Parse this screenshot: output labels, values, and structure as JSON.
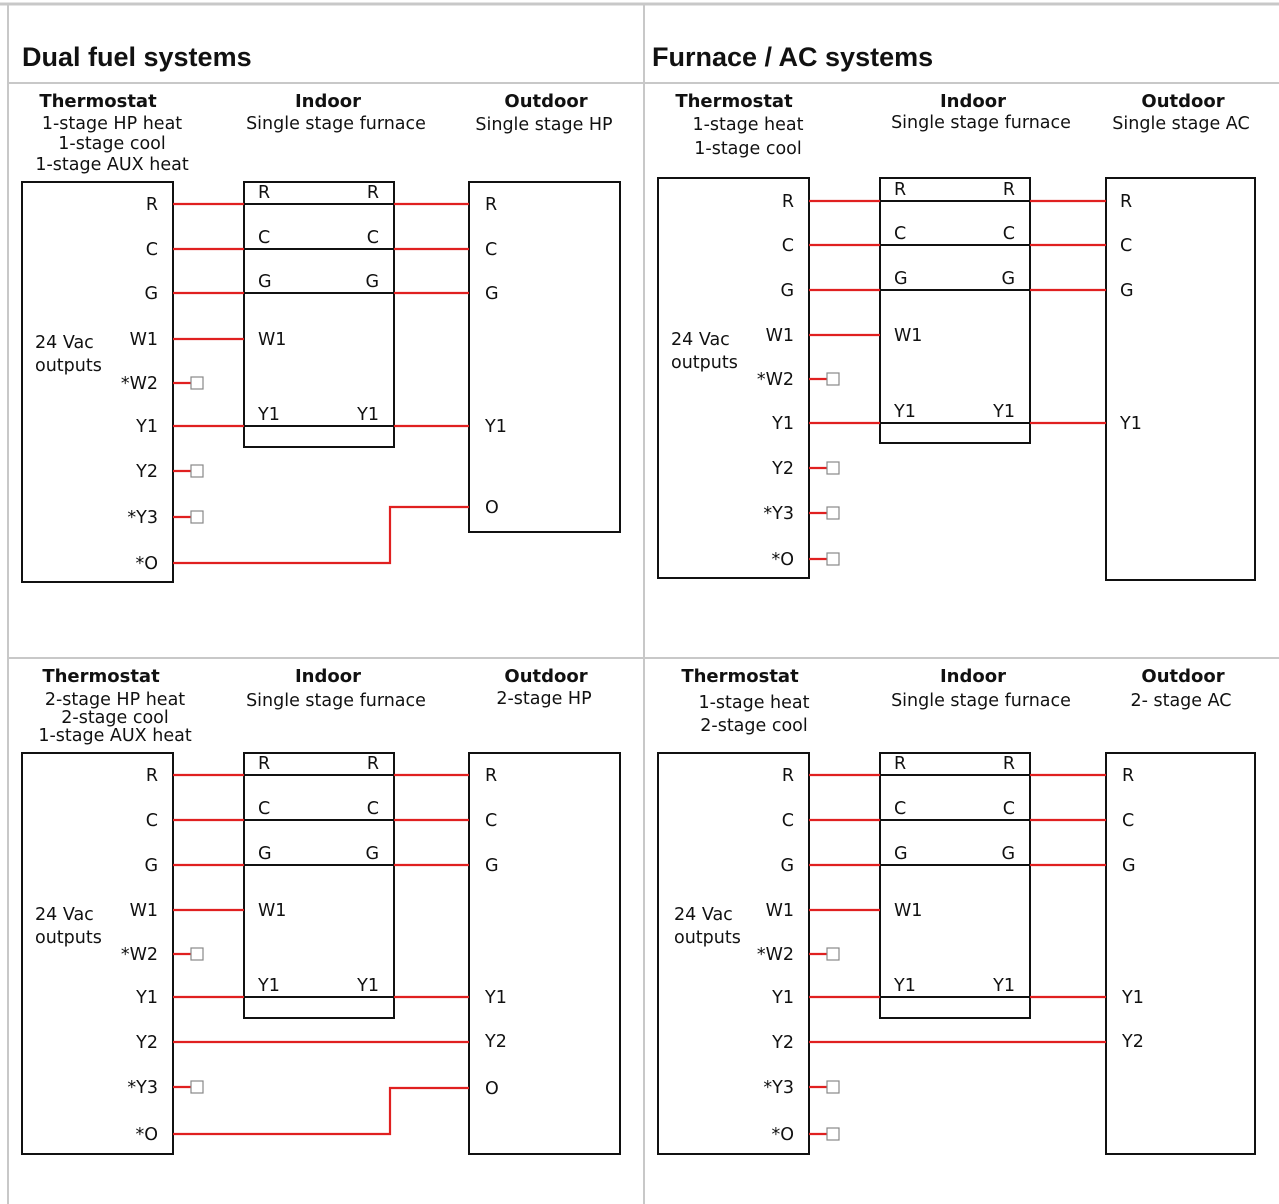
{
  "sections": {
    "left": "Dual fuel systems",
    "right": "Furnace / AC systems"
  },
  "common": {
    "output_label": [
      "24 Vac",
      "outputs"
    ],
    "thermostat_terminals": [
      "R",
      "C",
      "G",
      "W1",
      "*W2",
      "Y1",
      "Y2",
      "*Y3",
      "*O"
    ],
    "indoor_terminals": [
      "R",
      "C",
      "G",
      "W1",
      "Y1"
    ]
  },
  "diagrams": [
    {
      "thermostat": {
        "title": "Thermostat",
        "lines": [
          "1-stage HP heat",
          "1-stage cool",
          "1-stage AUX heat"
        ]
      },
      "indoor": {
        "title": "Indoor",
        "lines": [
          "Single stage furnace"
        ]
      },
      "outdoor": {
        "title": "Outdoor",
        "lines": [
          "Single stage HP"
        ],
        "terminals": [
          "R",
          "C",
          "G",
          "Y1",
          "O"
        ]
      },
      "unused_terminals": [
        "*W2",
        "Y2",
        "*Y3"
      ]
    },
    {
      "thermostat": {
        "title": "Thermostat",
        "lines": [
          "1-stage heat",
          "1-stage cool"
        ]
      },
      "indoor": {
        "title": "Indoor",
        "lines": [
          "Single stage furnace"
        ]
      },
      "outdoor": {
        "title": "Outdoor",
        "lines": [
          "Single stage AC"
        ],
        "terminals": [
          "R",
          "C",
          "G",
          "Y1"
        ]
      },
      "unused_terminals": [
        "*W2",
        "Y2",
        "*Y3",
        "*O"
      ]
    },
    {
      "thermostat": {
        "title": "Thermostat",
        "lines": [
          "2-stage HP heat",
          "2-stage cool",
          "1-stage AUX heat"
        ]
      },
      "indoor": {
        "title": "Indoor",
        "lines": [
          "Single stage furnace"
        ]
      },
      "outdoor": {
        "title": "Outdoor",
        "lines": [
          "2-stage HP"
        ],
        "terminals": [
          "R",
          "C",
          "G",
          "Y1",
          "Y2",
          "O"
        ]
      },
      "unused_terminals": [
        "*W2",
        "*Y3"
      ]
    },
    {
      "thermostat": {
        "title": "Thermostat",
        "lines": [
          "1-stage heat",
          "2-stage cool"
        ]
      },
      "indoor": {
        "title": "Indoor",
        "lines": [
          "Single stage furnace"
        ]
      },
      "outdoor": {
        "title": "Outdoor",
        "lines": [
          "2- stage AC"
        ],
        "terminals": [
          "R",
          "C",
          "G",
          "Y1",
          "Y2"
        ]
      },
      "unused_terminals": [
        "*W2",
        "*Y3",
        "*O"
      ]
    }
  ],
  "colors": {
    "wire": "#e02020",
    "grid": "#c8c8c8",
    "stroke": "#111111"
  }
}
